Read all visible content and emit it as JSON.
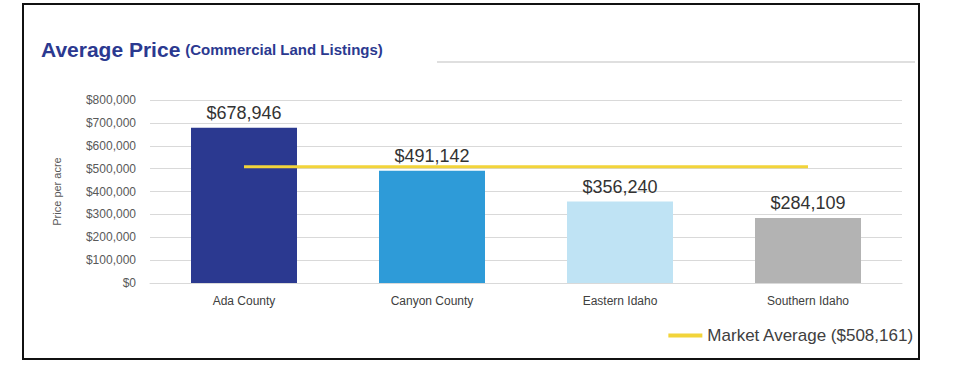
{
  "chart_data": {
    "type": "bar",
    "title": "Average Price",
    "subtitle": "(Commercial Land Listings)",
    "y_label": "Price per acre",
    "categories": [
      "Ada County",
      "Canyon County",
      "Eastern Idaho",
      "Southern Idaho"
    ],
    "series": [
      {
        "type": "bar",
        "values": [
          678946,
          491142,
          356240,
          284109
        ],
        "value_labels": [
          "$678,946",
          "$491,142",
          "$356,240",
          "$284,109"
        ],
        "colors": [
          "#2b3990",
          "#2e9bd8",
          "#bfe3f4",
          "#b3b3b3"
        ]
      },
      {
        "name": "Market Average ($508,161)",
        "type": "line",
        "color": "#f2d43a",
        "values": [
          508161,
          508161,
          508161,
          508161
        ]
      }
    ],
    "ylim": [
      0,
      800000
    ],
    "yticks": [
      {
        "value": 0,
        "label": "$0"
      },
      {
        "value": 100000,
        "label": "$100,000"
      },
      {
        "value": 200000,
        "label": "$200,000"
      },
      {
        "value": 300000,
        "label": "$300,000"
      },
      {
        "value": 400000,
        "label": "$400,000"
      },
      {
        "value": 500000,
        "label": "$500,000"
      },
      {
        "value": 600000,
        "label": "$600,000"
      },
      {
        "value": 700000,
        "label": "$700,000"
      },
      {
        "value": 800000,
        "label": "$800,000"
      }
    ],
    "grid": true,
    "data_labels": true,
    "legend": "bottom-right"
  }
}
